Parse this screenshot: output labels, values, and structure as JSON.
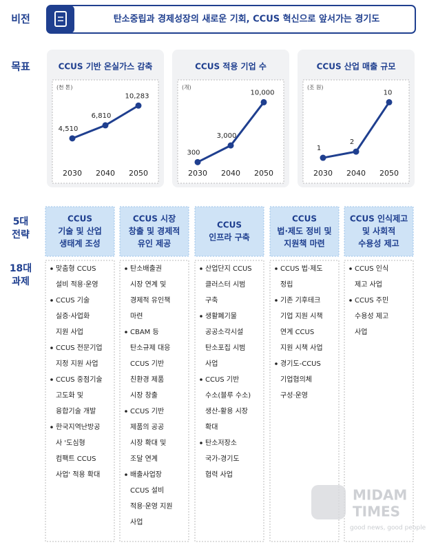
{
  "vision": {
    "label": "비전",
    "text": "탄소중립과 경제성장의 새로운 기회, CCUS 혁신으로 앞서가는 경기도"
  },
  "goals": {
    "label": "목표"
  },
  "chart_data": [
    {
      "type": "line",
      "title": "CCUS 기반 온실가스 감축",
      "unit": "(천 톤)",
      "categories": [
        "2030",
        "2040",
        "2050"
      ],
      "values": [
        4510,
        6810,
        10283
      ],
      "value_labels": [
        "4,510",
        "6,810",
        "10,283"
      ],
      "color": "#1f3f8f",
      "ylim": [
        0,
        12500
      ]
    },
    {
      "type": "line",
      "title": "CCUS 적용 기업 수",
      "unit": "(개)",
      "categories": [
        "2030",
        "2040",
        "2050"
      ],
      "values": [
        300,
        3000,
        10000
      ],
      "value_labels": [
        "300",
        "3,000",
        "10,000"
      ],
      "color": "#1f3f8f",
      "ylim": [
        0,
        11500
      ]
    },
    {
      "type": "line",
      "title": "CCUS 산업 매출 규모",
      "unit": "(조 원)",
      "categories": [
        "2030",
        "2040",
        "2050"
      ],
      "values": [
        1,
        2,
        10
      ],
      "color": "#1f3f8f",
      "ylim": [
        0,
        11.5
      ]
    }
  ],
  "strategy": {
    "label_lines": [
      "5대",
      "전략"
    ],
    "tasks_label_lines": [
      "18대",
      "과제"
    ],
    "columns": [
      {
        "header_lines": [
          "CCUS",
          "기술 및 산업",
          "생태계 조성"
        ],
        "tasks": [
          [
            "맞춤형 CCUS",
            "설비 적용·운영"
          ],
          [
            "CCUS 기술",
            "실증·사업화",
            "지원 사업"
          ],
          [
            "CCUS 전문기업",
            "지정 지원 사업"
          ],
          [
            "CCUS 중점기술",
            "고도화 및",
            "융합기술 개발"
          ],
          [
            "한국지역난방공",
            "사 '도심형",
            "컴팩트 CCUS",
            "사업' 적용 확대"
          ]
        ]
      },
      {
        "header_lines": [
          "CCUS 시장",
          "창출 및 경제적",
          "유인 제공"
        ],
        "tasks": [
          [
            "탄소배출권",
            "시장 연계 및",
            "경제적 유인책",
            "마련"
          ],
          [
            "CBAM 등",
            "탄소규제 대응",
            "CCUS 기반",
            "친환경 제품",
            "시장 창출"
          ],
          [
            "CCUS 기반",
            "제품의 공공",
            "시장 확대 및",
            "조달 연계"
          ],
          [
            "배출사업장",
            "CCUS 설비",
            "적용·운영 지원",
            "사업"
          ]
        ]
      },
      {
        "header_lines": [
          "CCUS",
          "인프라 구축"
        ],
        "tasks": [
          [
            "산업단지 CCUS",
            "클러스터 시범",
            "구축"
          ],
          [
            "생활폐기물",
            "공공소각시설",
            "탄소포집 시범",
            "사업"
          ],
          [
            "CCUS 기반",
            "수소(블루 수소)",
            "생산-활용 시장",
            "확대"
          ],
          [
            "탄소저장소",
            "국가-경기도",
            "협력 사업"
          ]
        ]
      },
      {
        "header_lines": [
          "CCUS",
          "법·제도 정비 및",
          "지원책 마련"
        ],
        "tasks": [
          [
            "CCUS 법·제도",
            "정립"
          ],
          [
            "기존 기후테크",
            "기업 지원 시책",
            "연계 CCUS",
            "지원 시책 사업"
          ],
          [
            "경기도-CCUS",
            "기업협의체",
            "구성·운영"
          ]
        ]
      },
      {
        "header_lines": [
          "CCUS 인식제고",
          "및 사회적",
          "수용성 제고"
        ],
        "tasks": [
          [
            "CCUS 인식",
            "제고 사업"
          ],
          [
            "CCUS 주민",
            "수용성 제고",
            "사업"
          ]
        ]
      }
    ]
  },
  "watermark": {
    "brand_lines": [
      "MIDAM",
      "TIMES"
    ],
    "slogan": "good news, good people"
  }
}
